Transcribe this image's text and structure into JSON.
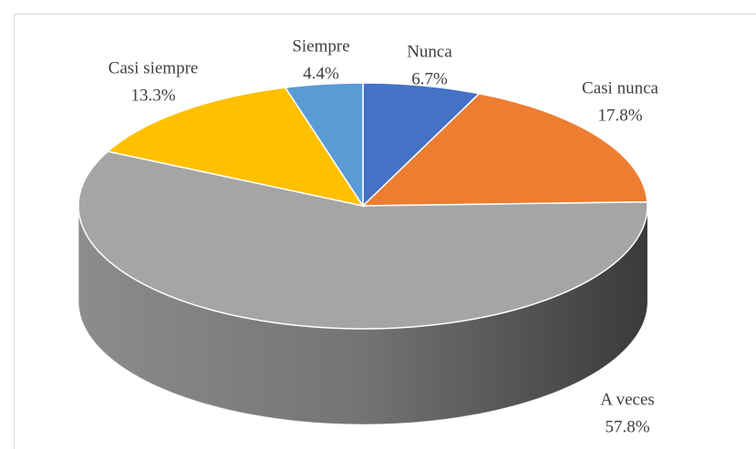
{
  "chart_data": {
    "type": "pie3d",
    "categories": [
      "Nunca",
      "Casi nunca",
      "A veces",
      "Casi siempre",
      "Siempre"
    ],
    "values": [
      6.7,
      17.8,
      57.8,
      13.3,
      4.4
    ],
    "value_labels": [
      "6.7%",
      "17.8%",
      "57.8%",
      "13.3%",
      "4.4%"
    ],
    "colors": [
      "#4472c4",
      "#ed7d31",
      "#a5a5a5",
      "#ffc000",
      "#5b9bd5"
    ]
  }
}
